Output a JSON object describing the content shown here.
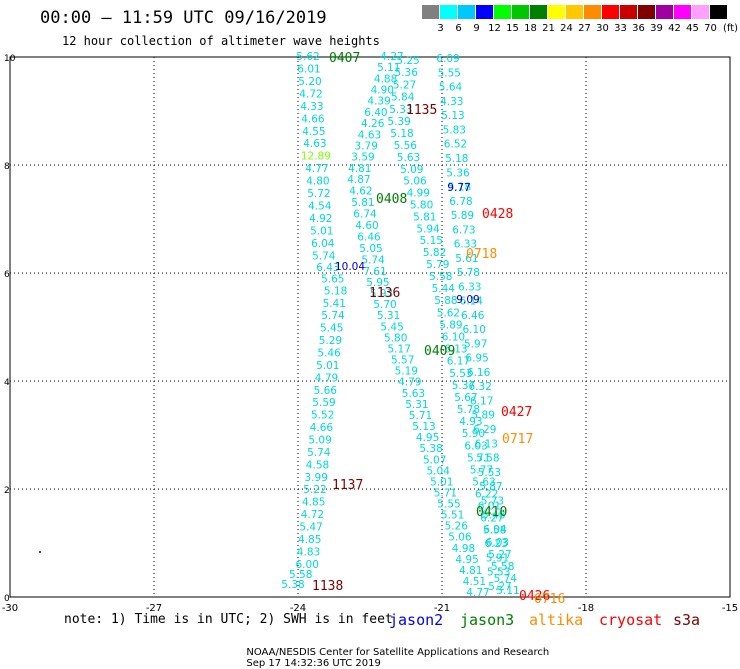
{
  "header": {
    "title": "00:00 – 11:59 UTC 09/16/2019",
    "subtitle": "12 hour collection of altimeter wave heights"
  },
  "colorbar": {
    "unit_label": "(ft)",
    "colors": [
      "#808080",
      "#00ffff",
      "#00c8ff",
      "#0000ff",
      "#00ff00",
      "#00c800",
      "#008000",
      "#ffff00",
      "#ffc800",
      "#ff8c00",
      "#ff0000",
      "#c80000",
      "#800000",
      "#a000a0",
      "#ff00ff",
      "#ffa0ff",
      "#000000"
    ],
    "labels": [
      "3",
      "6",
      "9",
      "12",
      "15",
      "18",
      "21",
      "24",
      "27",
      "30",
      "33",
      "36",
      "39",
      "42",
      "45",
      "70"
    ]
  },
  "axes": {
    "x_ticks": [
      "-30",
      "-27",
      "-24",
      "-21",
      "-18",
      "-15"
    ],
    "y_ticks": [
      "0",
      "2",
      "4",
      "6",
      "8",
      "10"
    ]
  },
  "tracks": [
    {
      "values": [
        "5.62",
        "6.01",
        "5.20",
        "4.72",
        "4.33",
        "4.66",
        "4.55",
        "4.63",
        "12.89",
        "4.77",
        "4.80",
        "5.72",
        "4.54",
        "4.92",
        "5.01",
        "6.04",
        "5.74",
        "6.43",
        "5.65",
        "5.18",
        "5.41",
        "5.74",
        "5.45",
        "5.29",
        "5.46",
        "5.01",
        "4.79",
        "5.66",
        "5.59",
        "5.52",
        "4.66",
        "5.09",
        "5.74",
        "4.58",
        "3.99",
        "5.22",
        "4.85",
        "4.72",
        "5.47",
        "4.85",
        "4.83",
        "6.00",
        "5.58",
        "5.38"
      ]
    },
    {
      "values": [
        "4.27",
        "5.11",
        "4.88",
        "4.90",
        "4.39",
        "6.40",
        "4.26",
        "4.63",
        "3.79",
        "3.59",
        "4.81",
        "4.87",
        "4.62",
        "5.81",
        "6.74",
        "4.60",
        "6.46",
        "5.05",
        "5.74",
        "7.61",
        "5.95",
        "5.93",
        "5.70",
        "5.31",
        "5.45",
        "5.80",
        "5.17",
        "5.57",
        "5.19",
        "4.79",
        "5.63",
        "5.31",
        "5.71",
        "5.13",
        "4.95",
        "5.38",
        "5.07",
        "5.04",
        "5.01",
        "5.71",
        "5.55",
        "5.51",
        "5.26",
        "5.06",
        "4.98",
        "4.95",
        "4.81",
        "4.51",
        "4.77"
      ]
    },
    {
      "values": [
        "5.25",
        "5.36",
        "5.27",
        "5.84",
        "5.33",
        "5.39",
        "5.18",
        "5.56",
        "5.63",
        "5.09",
        "5.06",
        "4.99",
        "5.80",
        "5.81",
        "5.94",
        "5.15",
        "5.82",
        "5.79",
        "5.58",
        "5.44",
        "5.88",
        "5.62",
        "5.89",
        "6.10",
        "6.13",
        "6.17",
        "5.53",
        "5.37",
        "5.67",
        "5.78",
        "4.93",
        "5.90",
        "6.03",
        "5.71",
        "5.77",
        "5.63",
        "6.22",
        "6.01",
        "6.27",
        "5.58",
        "6.03",
        "5.27",
        "5.58",
        "5.74",
        "5.11"
      ]
    },
    {
      "values": [
        "6.09",
        "5.55",
        "5.64",
        "4.33",
        "5.13",
        "5.83",
        "6.52",
        "5.18",
        "5.36",
        "5.18",
        "6.78",
        "5.89",
        "6.73",
        "6.33",
        "5.61",
        "5.78",
        "6.33",
        "6.14",
        "6.46",
        "6.10",
        "5.97",
        "6.95",
        "6.16",
        "6.32",
        "6.17",
        "5.89",
        "6.29",
        "6.13",
        "5.58",
        "5.53",
        "5.87",
        "5.73",
        "5.48",
        "6.04",
        "6.23",
        "5.91",
        "5.53",
        "5.27"
      ]
    }
  ],
  "special_values": [
    {
      "text": "9.77",
      "color": "#0000c8"
    },
    {
      "text": "9.09",
      "color": "#0000c8"
    },
    {
      "text": "10.04",
      "color": "#0000c8"
    }
  ],
  "passes": [
    {
      "id": "0407",
      "color": "#008000"
    },
    {
      "id": "1135",
      "color": "#800000"
    },
    {
      "id": "0408",
      "color": "#008000"
    },
    {
      "id": "0428",
      "color": "#ff0000"
    },
    {
      "id": "0718",
      "color": "#ff8c00"
    },
    {
      "id": "1136",
      "color": "#800000"
    },
    {
      "id": "0409",
      "color": "#008000"
    },
    {
      "id": "0427",
      "color": "#ff0000"
    },
    {
      "id": "0717",
      "color": "#ff8c00"
    },
    {
      "id": "1137",
      "color": "#800000"
    },
    {
      "id": "0410",
      "color": "#008000"
    },
    {
      "id": "1138",
      "color": "#800000"
    },
    {
      "id": "0426",
      "color": "#ff0000"
    },
    {
      "id": "0716",
      "color": "#ff8c00"
    }
  ],
  "footer": {
    "note": "note: 1) Time is in UTC; 2) SWH is in feet",
    "legend": [
      {
        "name": "jason2",
        "color": "#0000ff"
      },
      {
        "name": "jason3",
        "color": "#008000"
      },
      {
        "name": "altika",
        "color": "#ff8c00"
      },
      {
        "name": "cryosat",
        "color": "#ff0000"
      },
      {
        "name": "s3a",
        "color": "#800000"
      }
    ],
    "credit": "NOAA/NESDIS Center for Satellite Applications and Research",
    "timestamp": "Sep 17 14:32:36 UTC 2019"
  }
}
